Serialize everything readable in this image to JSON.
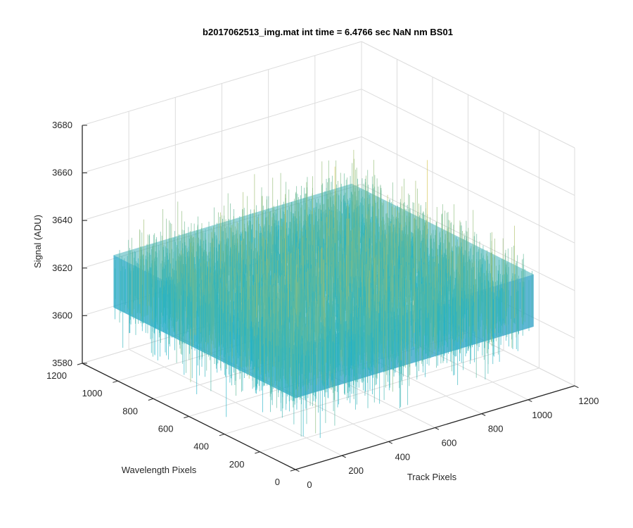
{
  "chart_data": {
    "type": "surface",
    "title": "b2017062513_img.mat int time = 6.4766 sec  NaN nm BS01",
    "xlabel": "Track Pixels",
    "ylabel": "Wavelength Pixels",
    "zlabel": "Signal (ADU)",
    "xlim": [
      0,
      1200
    ],
    "ylim": [
      0,
      1200
    ],
    "zlim": [
      3580,
      3680
    ],
    "xticks": [
      "0",
      "200",
      "400",
      "600",
      "800",
      "1000",
      "1200"
    ],
    "yticks": [
      "0",
      "200",
      "400",
      "600",
      "800",
      "1000",
      "1200"
    ],
    "zticks": [
      "3580",
      "3600",
      "3620",
      "3640",
      "3660",
      "3680"
    ],
    "grid": true,
    "colormap": "parula",
    "data_extent": {
      "x": [
        0,
        1024
      ],
      "y": [
        0,
        1024
      ]
    },
    "signal_mean": 3620,
    "signal_range": [
      3590,
      3660
    ],
    "colors": {
      "low": "#0072BD",
      "mid": "#21B3C7",
      "high": "#D4C44F"
    }
  }
}
